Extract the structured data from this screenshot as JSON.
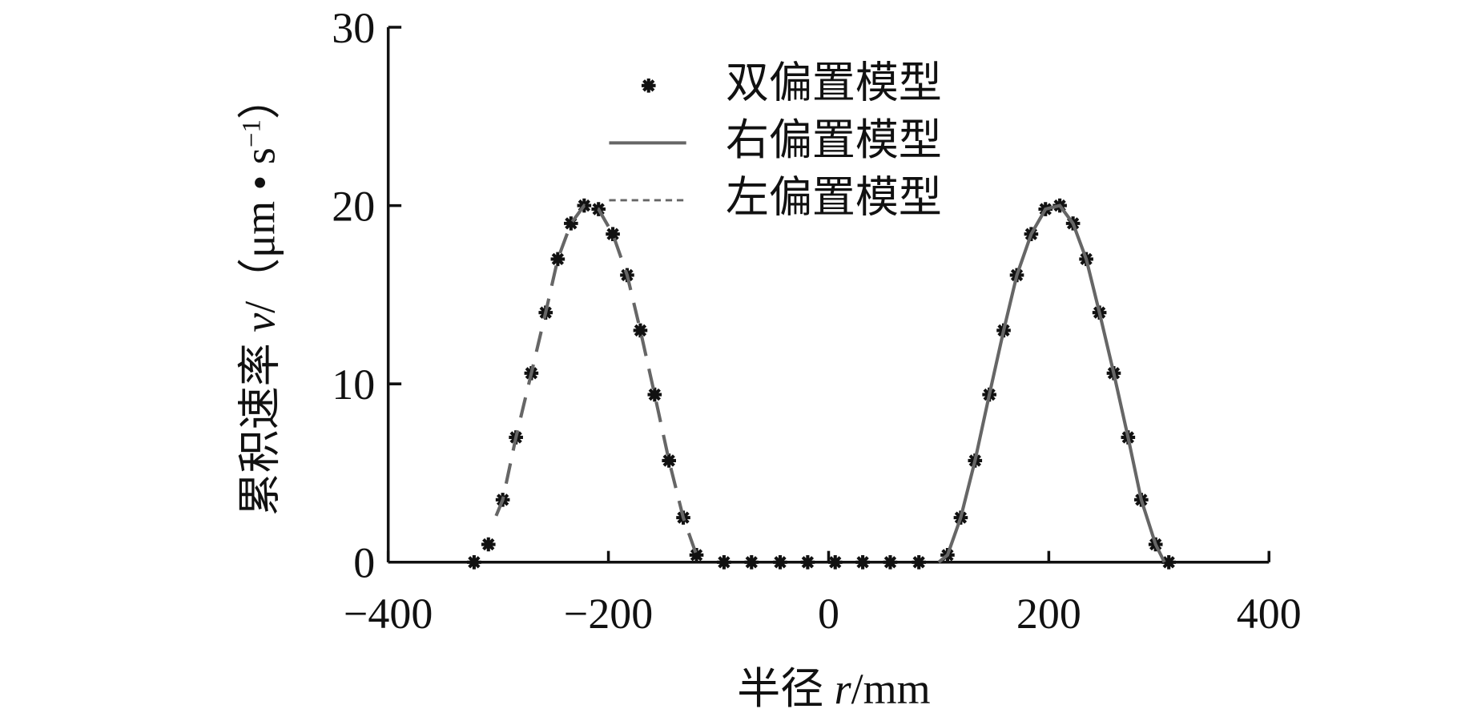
{
  "chart_data": {
    "type": "scatter",
    "xlabel": [
      "半径 ",
      "r",
      "/mm"
    ],
    "ylabel": [
      "累积速率 ",
      "v",
      "/（μm • s",
      "−1",
      "）"
    ],
    "xlim": [
      -400,
      400
    ],
    "ylim": [
      0,
      30
    ],
    "xticks": [
      {
        "value": -400,
        "label": "−400"
      },
      {
        "value": -200,
        "label": "−200"
      },
      0,
      200,
      400
    ],
    "yticks": [
      0,
      10,
      20,
      30
    ],
    "legend": "top-left",
    "series": [
      {
        "name": "双偏置模型",
        "style": "marker",
        "color": "#111111",
        "x": [
          -322,
          -309,
          -296,
          -284,
          -270,
          -257,
          -246,
          -234,
          -222,
          -209,
          -196,
          -183,
          -171,
          -158,
          -145,
          -132,
          -120,
          -95,
          -70,
          -44,
          -19,
          6,
          31,
          56,
          82,
          108,
          120,
          133,
          146,
          159,
          171,
          184,
          197,
          210,
          222,
          234,
          246,
          259,
          272,
          284,
          297,
          309
        ],
        "values": [
          0,
          1,
          3.5,
          7,
          10.6,
          14,
          17,
          19,
          20,
          19.8,
          18.4,
          16.1,
          13,
          9.4,
          5.7,
          2.5,
          0.4,
          0,
          0,
          0,
          0,
          0,
          0,
          0,
          0,
          0.4,
          2.5,
          5.7,
          9.4,
          13,
          16.1,
          18.4,
          19.8,
          20,
          19,
          17,
          14,
          10.6,
          7,
          3.5,
          1,
          0
        ]
      },
      {
        "name": "右偏置模型",
        "style": "solid",
        "color": "#666666",
        "x": [
          100,
          108,
          120,
          133,
          146,
          159,
          171,
          184,
          197,
          210,
          222,
          234,
          246,
          259,
          272,
          284,
          297,
          305
        ],
        "values": [
          0,
          0.4,
          2.5,
          5.7,
          9.4,
          13,
          16.1,
          18.4,
          19.8,
          20,
          19,
          17,
          14,
          10.6,
          7,
          3.5,
          1,
          0
        ]
      },
      {
        "name": "左偏置模型",
        "style": "dashed",
        "color": "#666666",
        "x": [
          -302,
          -296,
          -284,
          -270,
          -257,
          -246,
          -234,
          -222,
          -209,
          -196,
          -183,
          -171,
          -158,
          -145,
          -132,
          -120,
          -115
        ],
        "values": [
          2.6,
          3.5,
          7,
          10.6,
          14,
          17,
          19,
          20,
          19.8,
          18.4,
          16.1,
          13,
          9.4,
          5.7,
          2.5,
          0.4,
          0
        ]
      }
    ]
  }
}
